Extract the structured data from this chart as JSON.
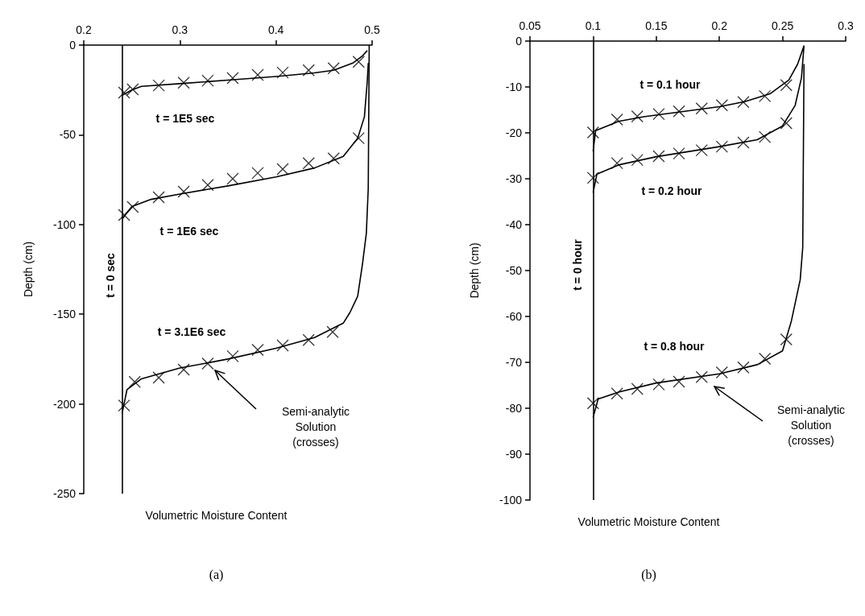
{
  "chart_data": [
    {
      "type": "line",
      "title": "(a)",
      "xlabel": "Volumetric Moisture Content",
      "ylabel": "Depth (cm)",
      "grid": false,
      "xlim": [
        0.2,
        0.5
      ],
      "xticks": [
        0.2,
        0.3,
        0.4,
        0.5
      ],
      "ylim": [
        -250,
        0
      ],
      "yticks": [
        -250,
        -200,
        -150,
        -100,
        -50,
        0
      ],
      "ref_lines": [
        {
          "axis": "x",
          "value": 0.24,
          "label": "t = 0 sec",
          "color": "#000000"
        }
      ],
      "series": [
        {
          "name": "t = 1E5 sec",
          "type": "line",
          "marker": "none",
          "color": "#000000",
          "x": [
            0.24,
            0.25,
            0.26,
            0.3,
            0.35,
            0.4,
            0.44,
            0.46,
            0.48,
            0.49,
            0.495
          ],
          "values": [
            -28,
            -25,
            -23,
            -21.5,
            -19.5,
            -17.5,
            -15.5,
            -14,
            -10,
            -6,
            -3
          ]
        },
        {
          "name": "t = 1E6 sec",
          "type": "line",
          "marker": "none",
          "color": "#000000",
          "x": [
            0.24,
            0.25,
            0.27,
            0.3,
            0.35,
            0.4,
            0.44,
            0.47,
            0.485,
            0.492,
            0.495,
            0.496
          ],
          "values": [
            -97,
            -90,
            -86,
            -83,
            -78.5,
            -73.5,
            -68.5,
            -62,
            -52,
            -40,
            -20,
            -10
          ]
        },
        {
          "name": "t = 3.1E6 sec",
          "type": "line",
          "marker": "none",
          "color": "#000000",
          "x": [
            0.24,
            0.245,
            0.26,
            0.3,
            0.35,
            0.4,
            0.44,
            0.47,
            0.477,
            0.485,
            0.49,
            0.494,
            0.496,
            0.497
          ],
          "values": [
            -205,
            -192,
            -186,
            -180,
            -175,
            -169,
            -163,
            -155,
            -149,
            -140,
            -122,
            -105,
            -80,
            0
          ]
        },
        {
          "type": "scatter",
          "marker": "cross",
          "color": "#000000",
          "x": [
            0.242,
            0.251,
            0.278,
            0.304,
            0.329,
            0.355,
            0.381,
            0.407,
            0.434,
            0.46,
            0.486
          ],
          "values": [
            -26.5,
            -24.7,
            -22.5,
            -21,
            -19.8,
            -18.4,
            -16.6,
            -15.3,
            -14,
            -12.9,
            -9.3
          ]
        },
        {
          "type": "scatter",
          "marker": "cross",
          "color": "#000000",
          "x": [
            0.242,
            0.251,
            0.278,
            0.304,
            0.329,
            0.355,
            0.381,
            0.407,
            0.434,
            0.46,
            0.486
          ],
          "values": [
            -94.7,
            -90.2,
            -84.8,
            -81.7,
            -78,
            -74.5,
            -71.3,
            -69.1,
            -65.9,
            -63.2,
            -51.9
          ]
        },
        {
          "type": "scatter",
          "marker": "cross",
          "color": "#000000",
          "x": [
            0.242,
            0.253,
            0.278,
            0.304,
            0.329,
            0.355,
            0.381,
            0.407,
            0.434,
            0.459
          ],
          "values": [
            -200.9,
            -187.7,
            -185.4,
            -180.9,
            -177.5,
            -173.4,
            -169.9,
            -167.4,
            -164.4,
            -159.9
          ]
        }
      ],
      "annotations": [
        "Semi-analytic\nSolution\n(crosses)"
      ]
    },
    {
      "type": "line",
      "title": "(b)",
      "xlabel": "Volumetric Moisture Content",
      "ylabel": "Depth (cm)",
      "grid": false,
      "xlim": [
        0.05,
        0.3
      ],
      "xticks": [
        0.05,
        0.1,
        0.15,
        0.2,
        0.25,
        0.3
      ],
      "ylim": [
        -100,
        0
      ],
      "yticks": [
        -100,
        -90,
        -80,
        -70,
        -60,
        -50,
        -40,
        -30,
        -20,
        -10,
        0
      ],
      "ref_lines": [
        {
          "axis": "x",
          "value": 0.1,
          "label": "t = 0 hour",
          "color": "#000000"
        }
      ],
      "series": [
        {
          "name": "t = 0.1 hour",
          "type": "line",
          "marker": "none",
          "color": "#000000",
          "x": [
            0.1,
            0.102,
            0.12,
            0.14,
            0.2,
            0.22,
            0.24,
            0.255,
            0.262,
            0.267
          ],
          "values": [
            -24,
            -19.5,
            -17.5,
            -16.5,
            -14.3,
            -13.2,
            -11.5,
            -8.5,
            -5,
            -1
          ]
        },
        {
          "name": "t = 0.2 hour",
          "type": "line",
          "marker": "none",
          "color": "#000000",
          "x": [
            0.1,
            0.103,
            0.12,
            0.15,
            0.2,
            0.23,
            0.25,
            0.26,
            0.265,
            0.267
          ],
          "values": [
            -33,
            -29,
            -27,
            -25.2,
            -23,
            -21.5,
            -18.5,
            -14,
            -8,
            -1
          ]
        },
        {
          "name": "t = 0.8 hour",
          "type": "line",
          "marker": "none",
          "color": "#000000",
          "x": [
            0.1,
            0.104,
            0.12,
            0.15,
            0.2,
            0.23,
            0.25,
            0.257,
            0.264,
            0.266,
            0.267
          ],
          "values": [
            -82,
            -78,
            -76.5,
            -74.5,
            -72.5,
            -70.5,
            -67.5,
            -61,
            -52,
            -45,
            -5
          ]
        },
        {
          "type": "scatter",
          "marker": "cross",
          "color": "#000000",
          "x": [
            0.1,
            0.119,
            0.135,
            0.152,
            0.168,
            0.186,
            0.202,
            0.219,
            0.236,
            0.253
          ],
          "values": [
            -19.9,
            -17.1,
            -16.4,
            -15.9,
            -15.3,
            -14.7,
            -14,
            -13.3,
            -12,
            -9.6
          ]
        },
        {
          "type": "scatter",
          "marker": "cross",
          "color": "#000000",
          "x": [
            0.1,
            0.119,
            0.135,
            0.152,
            0.168,
            0.186,
            0.202,
            0.219,
            0.236,
            0.253
          ],
          "values": [
            -29.8,
            -26.6,
            -25.9,
            -25.1,
            -24.5,
            -23.8,
            -23,
            -22.1,
            -20.9,
            -17.9
          ]
        },
        {
          "type": "scatter",
          "marker": "cross",
          "color": "#000000",
          "x": [
            0.1,
            0.119,
            0.135,
            0.152,
            0.168,
            0.186,
            0.202,
            0.219,
            0.236,
            0.253
          ],
          "values": [
            -78.9,
            -76.8,
            -75.8,
            -74.8,
            -74.2,
            -73.2,
            -72.2,
            -71.1,
            -69.2,
            -65
          ]
        }
      ],
      "annotations": [
        "Semi-analytic\nSolution\n(crosses)"
      ]
    }
  ]
}
